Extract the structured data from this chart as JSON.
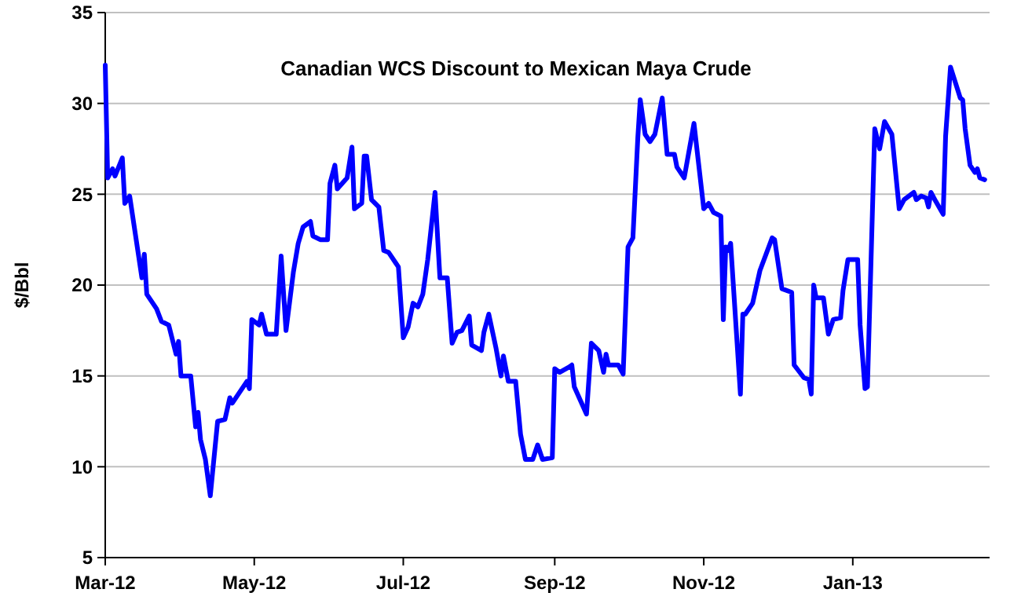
{
  "chart_data": {
    "type": "line",
    "title": "Canadian WCS Discount to Mexican Maya Crude",
    "ylabel": "$/Bbl",
    "color": "#0000ff",
    "grid": "y",
    "legend": false,
    "marker": "none",
    "line_style": "solid",
    "xlim": [
      "2012-03-01",
      "2013-02-26"
    ],
    "xticks": [
      {
        "value": "2012-03-01",
        "label": "Mar-12"
      },
      {
        "value": "2012-05-01",
        "label": "May-12"
      },
      {
        "value": "2012-07-01",
        "label": "Jul-12"
      },
      {
        "value": "2012-09-01",
        "label": "Sep-12"
      },
      {
        "value": "2012-11-01",
        "label": "Nov-12"
      },
      {
        "value": "2013-01-01",
        "label": "Jan-13"
      }
    ],
    "ylim": [
      5,
      35
    ],
    "yticks": [
      5,
      10,
      15,
      20,
      25,
      30,
      35
    ],
    "x": [
      "2012-03-01",
      "2012-03-02",
      "2012-03-04",
      "2012-03-05",
      "2012-03-08",
      "2012-03-09",
      "2012-03-11",
      "2012-03-16",
      "2012-03-17",
      "2012-03-18",
      "2012-03-22",
      "2012-03-24",
      "2012-03-27",
      "2012-03-30",
      "2012-03-31",
      "2012-04-01",
      "2012-04-05",
      "2012-04-07",
      "2012-04-08",
      "2012-04-09",
      "2012-04-11",
      "2012-04-13",
      "2012-04-16",
      "2012-04-19",
      "2012-04-21",
      "2012-04-22",
      "2012-04-24",
      "2012-04-28",
      "2012-04-29",
      "2012-04-30",
      "2012-05-03",
      "2012-05-04",
      "2012-05-06",
      "2012-05-10",
      "2012-05-12",
      "2012-05-14",
      "2012-05-17",
      "2012-05-19",
      "2012-05-21",
      "2012-05-24",
      "2012-05-25",
      "2012-05-28",
      "2012-05-31",
      "2012-06-01",
      "2012-06-03",
      "2012-06-04",
      "2012-06-08",
      "2012-06-10",
      "2012-06-11",
      "2012-06-14",
      "2012-06-15",
      "2012-06-16",
      "2012-06-18",
      "2012-06-21",
      "2012-06-23",
      "2012-06-25",
      "2012-06-28",
      "2012-06-29",
      "2012-07-01",
      "2012-07-03",
      "2012-07-05",
      "2012-07-07",
      "2012-07-09",
      "2012-07-11",
      "2012-07-14",
      "2012-07-16",
      "2012-07-19",
      "2012-07-21",
      "2012-07-23",
      "2012-07-25",
      "2012-07-28",
      "2012-07-29",
      "2012-08-02",
      "2012-08-03",
      "2012-08-05",
      "2012-08-08",
      "2012-08-10",
      "2012-08-11",
      "2012-08-13",
      "2012-08-16",
      "2012-08-18",
      "2012-08-20",
      "2012-08-23",
      "2012-08-25",
      "2012-08-27",
      "2012-08-31",
      "2012-09-01",
      "2012-09-03",
      "2012-09-07",
      "2012-09-08",
      "2012-09-09",
      "2012-09-14",
      "2012-09-16",
      "2012-09-19",
      "2012-09-21",
      "2012-09-22",
      "2012-09-23",
      "2012-09-27",
      "2012-09-29",
      "2012-10-01",
      "2012-10-03",
      "2012-10-05",
      "2012-10-06",
      "2012-10-08",
      "2012-10-10",
      "2012-10-12",
      "2012-10-15",
      "2012-10-17",
      "2012-10-20",
      "2012-10-21",
      "2012-10-24",
      "2012-10-28",
      "2012-11-01",
      "2012-11-03",
      "2012-11-05",
      "2012-11-08",
      "2012-11-09",
      "2012-11-10",
      "2012-11-11",
      "2012-11-12",
      "2012-11-16",
      "2012-11-17",
      "2012-11-18",
      "2012-11-21",
      "2012-11-24",
      "2012-11-29",
      "2012-11-30",
      "2012-12-03",
      "2012-12-07",
      "2012-12-08",
      "2012-12-12",
      "2012-12-14",
      "2012-12-15",
      "2012-12-16",
      "2012-12-17",
      "2012-12-20",
      "2012-12-22",
      "2012-12-24",
      "2012-12-27",
      "2012-12-28",
      "2012-12-30",
      "2013-01-03",
      "2013-01-04",
      "2013-01-06",
      "2013-01-07",
      "2013-01-10",
      "2013-01-12",
      "2013-01-14",
      "2013-01-17",
      "2013-01-20",
      "2013-01-22",
      "2013-01-26",
      "2013-01-27",
      "2013-01-29",
      "2013-01-31",
      "2013-02-01",
      "2013-02-02",
      "2013-02-04",
      "2013-02-07",
      "2013-02-08",
      "2013-02-10",
      "2013-02-14",
      "2013-02-15",
      "2013-02-16",
      "2013-02-18",
      "2013-02-20",
      "2013-02-21",
      "2013-02-22",
      "2013-02-24"
    ],
    "values": [
      32.1,
      25.9,
      26.4,
      26.0,
      27.0,
      24.5,
      24.9,
      20.4,
      21.7,
      19.5,
      18.7,
      18.0,
      17.8,
      16.2,
      16.9,
      15.0,
      15.0,
      12.2,
      13.0,
      11.5,
      10.4,
      8.4,
      12.5,
      12.6,
      13.8,
      13.5,
      13.9,
      14.7,
      14.3,
      18.1,
      17.8,
      18.4,
      17.3,
      17.3,
      21.6,
      17.5,
      20.7,
      22.3,
      23.2,
      23.5,
      22.7,
      22.5,
      22.5,
      25.6,
      26.6,
      25.3,
      25.9,
      27.6,
      24.2,
      24.5,
      27.1,
      27.1,
      24.7,
      24.3,
      21.9,
      21.8,
      21.2,
      21.0,
      17.1,
      17.7,
      19.0,
      18.8,
      19.5,
      21.4,
      25.1,
      20.4,
      20.4,
      16.8,
      17.4,
      17.5,
      18.3,
      16.7,
      16.4,
      17.4,
      18.4,
      16.5,
      15.0,
      16.1,
      14.7,
      14.7,
      11.8,
      10.4,
      10.4,
      11.2,
      10.4,
      10.5,
      15.4,
      15.2,
      15.5,
      15.6,
      14.4,
      12.9,
      16.8,
      16.4,
      15.2,
      16.2,
      15.6,
      15.6,
      15.1,
      22.1,
      22.6,
      28.1,
      30.2,
      28.3,
      27.9,
      28.3,
      30.3,
      27.2,
      27.2,
      26.5,
      25.9,
      28.9,
      24.2,
      24.5,
      24.0,
      23.8,
      18.1,
      22.1,
      21.9,
      22.3,
      14.0,
      18.4,
      18.4,
      19.0,
      20.8,
      22.6,
      22.5,
      19.8,
      19.6,
      15.6,
      14.9,
      14.8,
      14.0,
      20.0,
      19.3,
      19.3,
      17.3,
      18.1,
      18.2,
      19.7,
      21.4,
      21.4,
      17.8,
      14.3,
      14.4,
      28.6,
      27.5,
      29.0,
      28.3,
      24.2,
      24.7,
      25.1,
      24.7,
      24.9,
      24.8,
      24.3,
      25.1,
      24.6,
      23.9,
      28.2,
      32.0,
      30.3,
      30.2,
      28.6,
      26.6,
      26.2,
      26.4,
      25.9,
      25.8
    ]
  }
}
